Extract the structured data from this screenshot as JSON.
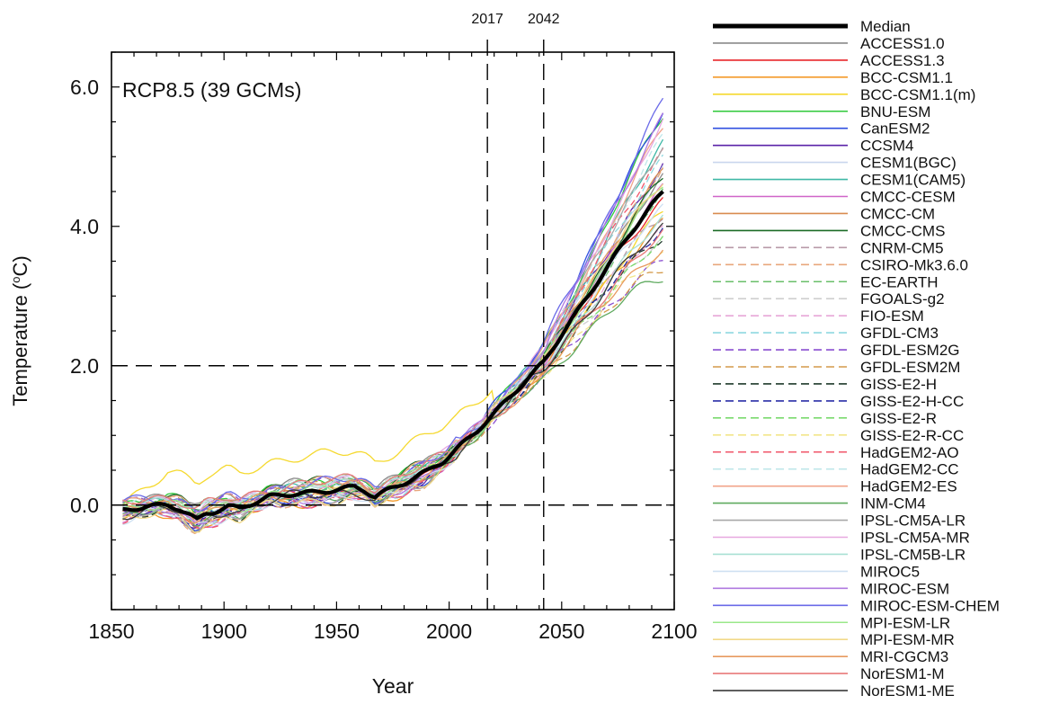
{
  "chart_data": {
    "type": "line",
    "panel_label": "RCP8.5 (39 GCMs)",
    "xlabel": "Year",
    "ylabel": "Temperature (",
    "ylabel_unit": "o",
    "ylabel_suffix": "C)",
    "xlim": [
      1850,
      2100
    ],
    "ylim": [
      -1.5,
      6.5
    ],
    "x_ticks": [
      1850,
      1900,
      1950,
      2000,
      2050,
      2100
    ],
    "x_tick_labels": [
      "1850",
      "1900",
      "1950",
      "2000",
      "2050",
      "2100"
    ],
    "y_ticks": [
      0,
      2,
      4,
      6
    ],
    "y_tick_labels": [
      "0.0",
      "2.0",
      "4.0",
      "6.0"
    ],
    "reference_lines": {
      "horizontal": [
        0,
        2
      ],
      "vertical": [
        {
          "x": 2017,
          "label": "2017"
        },
        {
          "x": 2042,
          "label": "2042"
        }
      ]
    },
    "legend_position": "right",
    "median": {
      "name": "Median",
      "color": "#000000",
      "x": [
        1855,
        1865,
        1875,
        1880,
        1885,
        1888,
        1892,
        1897,
        1902,
        1907,
        1912,
        1920,
        1930,
        1940,
        1950,
        1958,
        1962,
        1967,
        1972,
        1980,
        1990,
        1997,
        2005,
        2012,
        2017,
        2025,
        2035,
        2042,
        2050,
        2060,
        2070,
        2080,
        2090,
        2095
      ],
      "values": [
        -0.08,
        -0.02,
        0.0,
        -0.05,
        -0.15,
        -0.22,
        -0.12,
        -0.08,
        -0.02,
        -0.05,
        0.02,
        0.12,
        0.16,
        0.18,
        0.22,
        0.26,
        0.22,
        0.12,
        0.2,
        0.32,
        0.48,
        0.62,
        0.85,
        1.05,
        1.22,
        1.48,
        1.82,
        2.05,
        2.45,
        2.92,
        3.4,
        3.88,
        4.3,
        4.5
      ]
    },
    "series": [
      {
        "name": "ACCESS1.0",
        "color": "#8a8a8a",
        "style": "solid",
        "end": 4.7
      },
      {
        "name": "ACCESS1.3",
        "color": "#e8262a",
        "style": "solid",
        "end": 4.4
      },
      {
        "name": "BCC-CSM1.1",
        "color": "#f39a2a",
        "style": "solid",
        "end": 4.1
      },
      {
        "name": "BCC-CSM1.1(m)",
        "color": "#f5d92f",
        "style": "solid",
        "end": 4.2
      },
      {
        "name": "BNU-ESM",
        "color": "#2fc93a",
        "style": "solid",
        "end": 5.6
      },
      {
        "name": "CanESM2",
        "color": "#2f4fe0",
        "style": "solid",
        "end": 5.7
      },
      {
        "name": "CCSM4",
        "color": "#5b23a8",
        "style": "solid",
        "end": 4.9
      },
      {
        "name": "CESM1(BGC)",
        "color": "#c9d6ee",
        "style": "solid",
        "end": 4.8
      },
      {
        "name": "CESM1(CAM5)",
        "color": "#3fb8a6",
        "style": "solid",
        "end": 5.2
      },
      {
        "name": "CMCC-CESM",
        "color": "#d065c8",
        "style": "solid",
        "end": 4.6
      },
      {
        "name": "CMCC-CM",
        "color": "#d98c4f",
        "style": "solid",
        "end": 4.8
      },
      {
        "name": "CMCC-CMS",
        "color": "#1a6b26",
        "style": "solid",
        "end": 4.7
      },
      {
        "name": "CNRM-CM5",
        "color": "#b89aa8",
        "style": "dashed",
        "end": 4.2
      },
      {
        "name": "CSIRO-Mk3.6.0",
        "color": "#e8a77c",
        "style": "dashed",
        "end": 4.9
      },
      {
        "name": "EC-EARTH",
        "color": "#6abf6a",
        "style": "dashed",
        "end": 4.5
      },
      {
        "name": "FGOALS-g2",
        "color": "#cfcfcf",
        "style": "dashed",
        "end": 3.8
      },
      {
        "name": "FIO-ESM",
        "color": "#e8a6d8",
        "style": "dashed",
        "end": 4.0
      },
      {
        "name": "GFDL-CM3",
        "color": "#8ed8e0",
        "style": "dashed",
        "end": 5.0
      },
      {
        "name": "GFDL-ESM2G",
        "color": "#8a4fd0",
        "style": "dashed",
        "end": 3.5
      },
      {
        "name": "GFDL-ESM2M",
        "color": "#d49a4a",
        "style": "dashed",
        "end": 3.4
      },
      {
        "name": "GISS-E2-H",
        "color": "#1f3a2a",
        "style": "dashed",
        "end": 3.9
      },
      {
        "name": "GISS-E2-H-CC",
        "color": "#2a2fa8",
        "style": "dashed",
        "end": 4.0
      },
      {
        "name": "GISS-E2-R",
        "color": "#7ad96e",
        "style": "dashed",
        "end": 3.8
      },
      {
        "name": "GISS-E2-R-CC",
        "color": "#f2e58a",
        "style": "dashed",
        "end": 3.6
      },
      {
        "name": "HadGEM2-AO",
        "color": "#f0566a",
        "style": "dashed",
        "end": 5.1
      },
      {
        "name": "HadGEM2-CC",
        "color": "#bfe7ea",
        "style": "dashed",
        "end": 5.3
      },
      {
        "name": "HadGEM2-ES",
        "color": "#f2a48a",
        "style": "solid",
        "end": 5.4
      },
      {
        "name": "INM-CM4",
        "color": "#5faa5f",
        "style": "solid",
        "end": 3.3
      },
      {
        "name": "IPSL-CM5A-LR",
        "color": "#a8a8a8",
        "style": "solid",
        "end": 5.2
      },
      {
        "name": "IPSL-CM5A-MR",
        "color": "#e7a8e0",
        "style": "solid",
        "end": 5.5
      },
      {
        "name": "IPSL-CM5B-LR",
        "color": "#a8e0d4",
        "style": "solid",
        "end": 4.1
      },
      {
        "name": "MIROC5",
        "color": "#cfe0f2",
        "style": "solid",
        "end": 4.3
      },
      {
        "name": "MIROC-ESM",
        "color": "#b07ae0",
        "style": "solid",
        "end": 5.6
      },
      {
        "name": "MIROC-ESM-CHEM",
        "color": "#6a6ae8",
        "style": "solid",
        "end": 5.8
      },
      {
        "name": "MPI-ESM-LR",
        "color": "#9ae88a",
        "style": "solid",
        "end": 4.6
      },
      {
        "name": "MPI-ESM-MR",
        "color": "#f2d98a",
        "style": "solid",
        "end": 4.7
      },
      {
        "name": "MRI-CGCM3",
        "color": "#e89a5f",
        "style": "solid",
        "end": 3.7
      },
      {
        "name": "NorESM1-M",
        "color": "#e87a7a",
        "style": "solid",
        "end": 3.9
      },
      {
        "name": "NorESM1-ME",
        "color": "#3a3a3a",
        "style": "solid",
        "end": 4.0
      }
    ]
  }
}
